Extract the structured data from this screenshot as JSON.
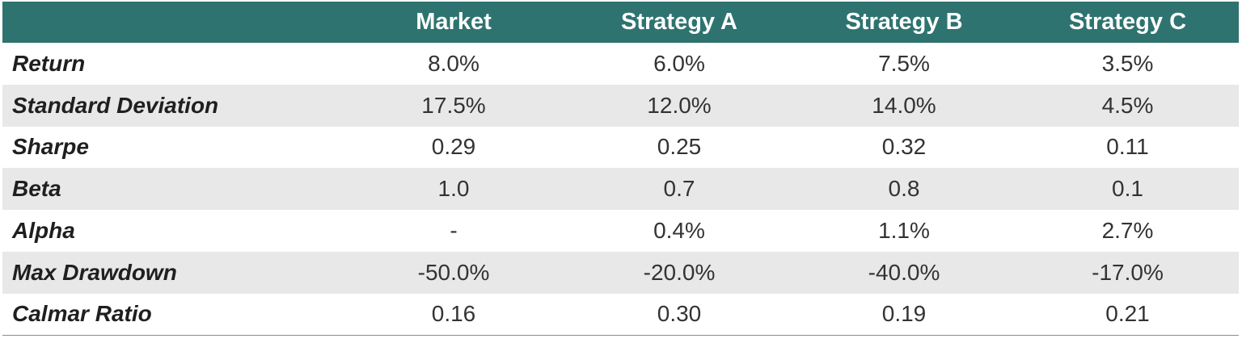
{
  "colors": {
    "header_bg": "#2e7370",
    "header_text": "#ffffff",
    "shaded_row": "#e8e8e8",
    "plain_row": "#ffffff"
  },
  "chart_data": {
    "type": "table",
    "columns": [
      "",
      "Market",
      "Strategy A",
      "Strategy B",
      "Strategy C"
    ],
    "rows": [
      {
        "metric": "Return",
        "values": [
          "8.0%",
          "6.0%",
          "7.5%",
          "3.5%"
        ]
      },
      {
        "metric": "Standard Deviation",
        "values": [
          "17.5%",
          "12.0%",
          "14.0%",
          "4.5%"
        ]
      },
      {
        "metric": "Sharpe",
        "values": [
          "0.29",
          "0.25",
          "0.32",
          "0.11"
        ]
      },
      {
        "metric": "Beta",
        "values": [
          "1.0",
          "0.7",
          "0.8",
          "0.1"
        ]
      },
      {
        "metric": "Alpha",
        "values": [
          "-",
          "0.4%",
          "1.1%",
          "2.7%"
        ]
      },
      {
        "metric": "Max Drawdown",
        "values": [
          "-50.0%",
          "-20.0%",
          "-40.0%",
          "-17.0%"
        ]
      },
      {
        "metric": "Calmar Ratio",
        "values": [
          "0.16",
          "0.30",
          "0.19",
          "0.21"
        ]
      }
    ]
  }
}
